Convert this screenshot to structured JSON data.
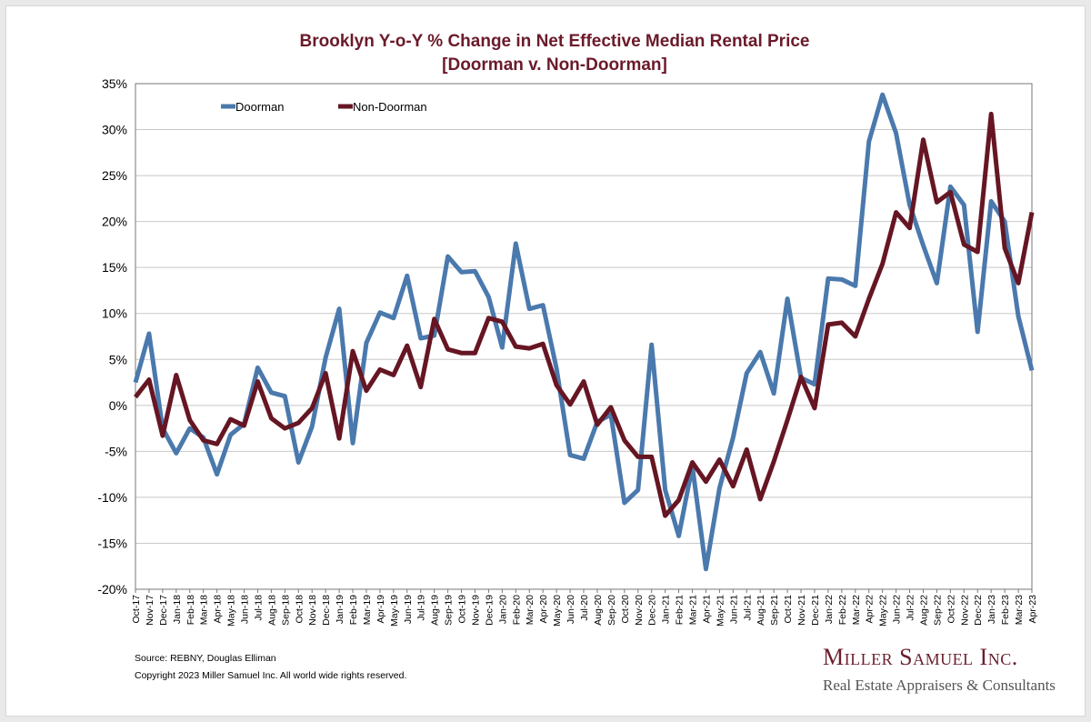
{
  "colors": {
    "title": "#6b1a2a",
    "doorman": "#4a79ad",
    "non_doorman": "#661623",
    "grid": "#c8c8c8",
    "brand_main": "#6a1f2c",
    "brand_sub": "#555555"
  },
  "chart_data": {
    "type": "line",
    "title": "Brooklyn Y-o-Y % Change in Net Effective Median Rental Price",
    "subtitle": "[Doorman v. Non-Doorman]",
    "xlabel": "",
    "ylabel": "",
    "ylim": [
      -20,
      35
    ],
    "yticks": [
      "35%",
      "30%",
      "25%",
      "20%",
      "15%",
      "10%",
      "5%",
      "0%",
      "-5%",
      "-10%",
      "-15%",
      "-20%"
    ],
    "ytick_values": [
      35,
      30,
      25,
      20,
      15,
      10,
      5,
      0,
      -5,
      -10,
      -15,
      -20
    ],
    "grid": true,
    "legend_position": "top-left",
    "categories": [
      "Oct-17",
      "Nov-17",
      "Dec-17",
      "Jan-18",
      "Feb-18",
      "Mar-18",
      "Apr-18",
      "May-18",
      "Jun-18",
      "Jul-18",
      "Aug-18",
      "Sep-18",
      "Oct-18",
      "Nov-18",
      "Dec-18",
      "Jan-19",
      "Feb-19",
      "Mar-19",
      "Apr-19",
      "May-19",
      "Jun-19",
      "Jul-19",
      "Aug-19",
      "Sep-19",
      "Oct-19",
      "Nov-19",
      "Dec-19",
      "Jan-20",
      "Feb-20",
      "Mar-20",
      "Apr-20",
      "May-20",
      "Jun-20",
      "Jul-20",
      "Aug-20",
      "Sep-20",
      "Oct-20",
      "Nov-20",
      "Dec-20",
      "Jan-21",
      "Feb-21",
      "Mar-21",
      "Apr-21",
      "May-21",
      "Jun-21",
      "Jul-21",
      "Aug-21",
      "Sep-21",
      "Oct-21",
      "Nov-21",
      "Dec-21",
      "Jan-22",
      "Feb-22",
      "Mar-22",
      "Apr-22",
      "May-22",
      "Jun-22",
      "Jul-22",
      "Aug-22",
      "Sep-22",
      "Oct-22",
      "Nov-22",
      "Dec-22",
      "Jan-23",
      "Feb-23",
      "Mar-23",
      "Apr-23"
    ],
    "series": [
      {
        "name": "Doorman",
        "values": [
          2.5,
          7.8,
          -2.5,
          -5.2,
          -2.5,
          -3.5,
          -7.5,
          -3.2,
          -2.0,
          4.1,
          1.4,
          1.0,
          -6.2,
          -2.3,
          5.2,
          10.5,
          -4.1,
          6.8,
          10.1,
          9.5,
          14.1,
          7.3,
          7.6,
          16.2,
          14.5,
          14.6,
          11.8,
          6.3,
          17.6,
          10.5,
          10.9,
          4.0,
          -5.4,
          -5.8,
          -1.8,
          -1.0,
          -10.6,
          -9.2,
          6.6,
          -9.2,
          -14.2,
          -6.6,
          -17.8,
          -9.0,
          -3.5,
          3.5,
          5.8,
          1.3,
          11.6,
          3.0,
          2.3,
          13.8,
          13.7,
          13.0,
          28.7,
          33.8,
          29.6,
          21.8,
          17.4,
          13.3,
          23.8,
          21.8,
          8.0,
          22.2,
          20.0,
          9.7,
          3.8
        ]
      },
      {
        "name": "Non-Doorman",
        "values": [
          0.9,
          2.8,
          -3.3,
          3.3,
          -1.6,
          -3.8,
          -4.2,
          -1.5,
          -2.2,
          2.6,
          -1.4,
          -2.5,
          -1.9,
          -0.3,
          3.5,
          -3.6,
          5.9,
          1.6,
          3.9,
          3.3,
          6.5,
          2.0,
          9.4,
          6.1,
          5.7,
          5.7,
          9.5,
          9.1,
          6.4,
          6.2,
          6.7,
          2.2,
          0.1,
          2.6,
          -2.1,
          -0.2,
          -3.8,
          -5.6,
          -5.6,
          -12.0,
          -10.3,
          -6.2,
          -8.3,
          -5.9,
          -8.8,
          -4.8,
          -10.2,
          -6.1,
          -1.6,
          3.1,
          -0.3,
          8.8,
          9.0,
          7.5,
          11.6,
          15.4,
          21.0,
          19.3,
          28.9,
          22.1,
          23.2,
          17.5,
          16.7,
          31.7,
          17.1,
          13.3,
          21.0
        ]
      }
    ]
  },
  "footer": {
    "source": "Source: REBNY, Douglas Elliman",
    "copyright": "Copyright 2023 Miller Samuel Inc.  All world wide rights reserved."
  },
  "brand": {
    "name": "Miller Samuel Inc.",
    "tagline": "Real Estate Appraisers & Consultants"
  }
}
